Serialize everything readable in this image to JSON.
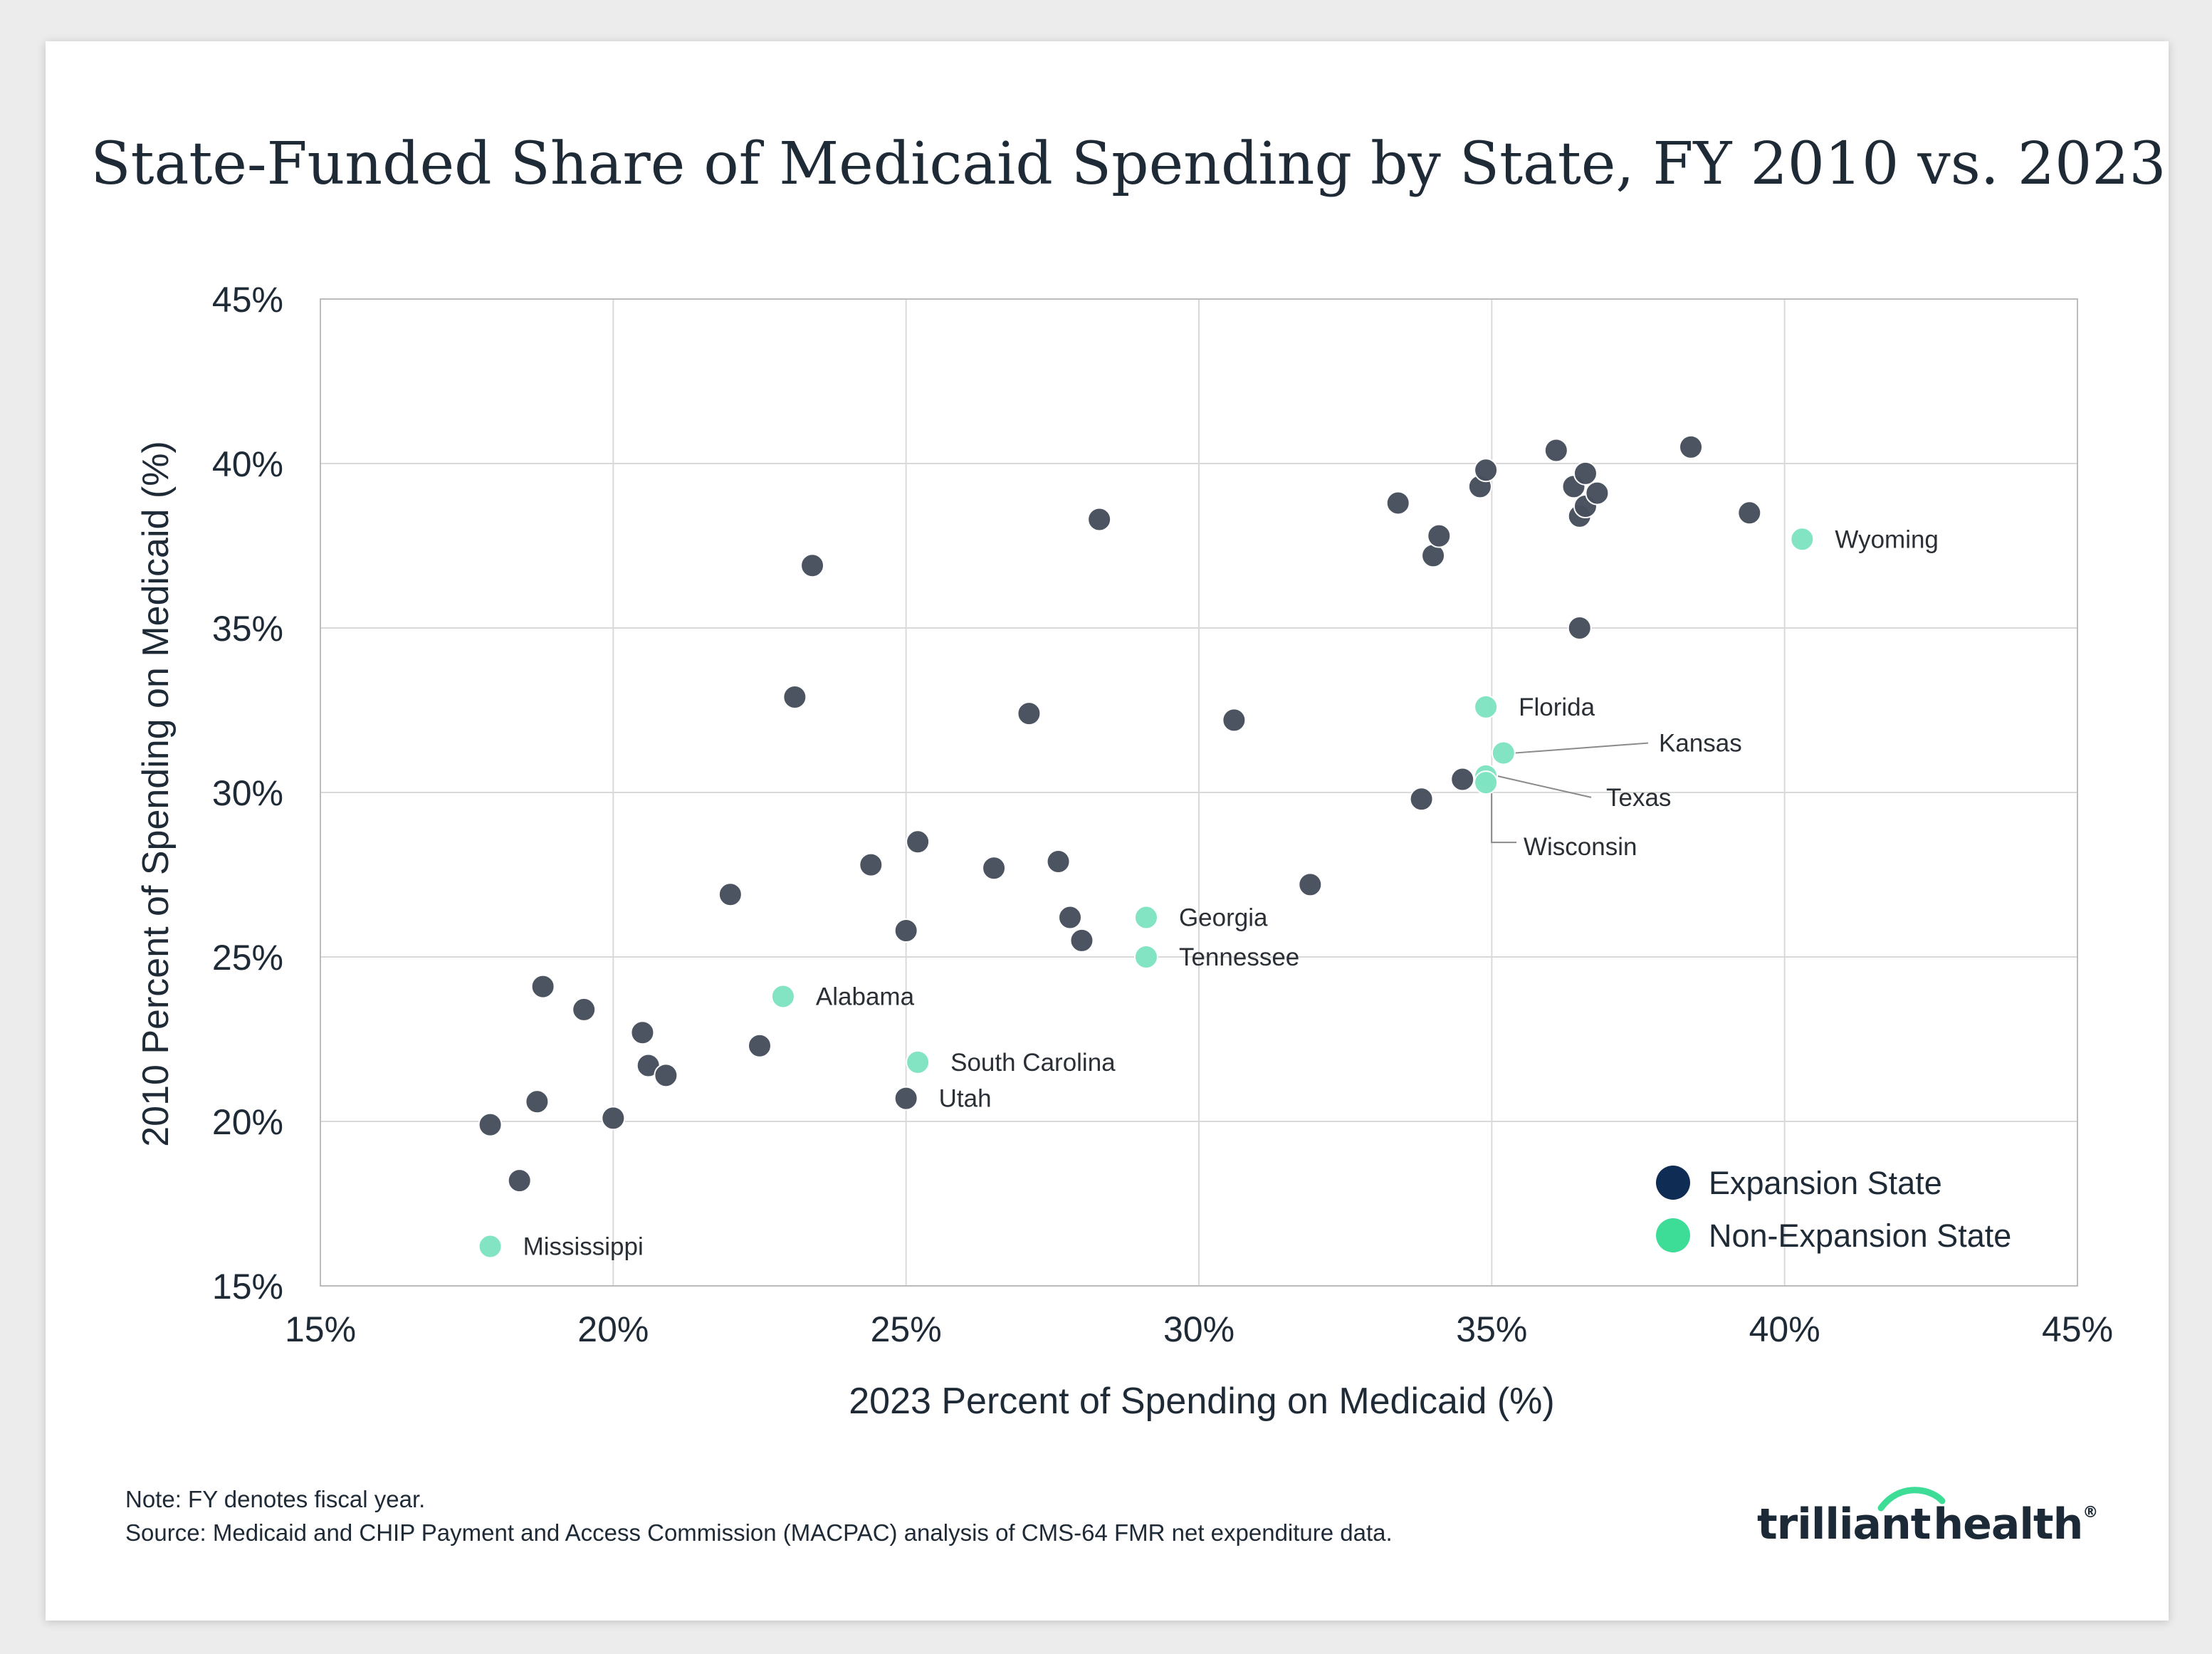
{
  "chart_data": {
    "type": "scatter",
    "title": "State-Funded Share of Medicaid Spending by State, FY 2010 vs. 2023",
    "xlabel": "2023 Percent of Spending on Medicaid (%)",
    "ylabel": "2010 Percent of Spending on Medicaid (%)",
    "xlim": [
      15,
      45
    ],
    "ylim": [
      15,
      45
    ],
    "x_ticks": [
      15,
      20,
      25,
      30,
      35,
      40,
      45
    ],
    "y_ticks": [
      15,
      20,
      25,
      30,
      35,
      40,
      45
    ],
    "x_tick_labels": [
      "15%",
      "20%",
      "25%",
      "30%",
      "35%",
      "40%",
      "45%"
    ],
    "y_tick_labels": [
      "15%",
      "20%",
      "25%",
      "30%",
      "35%",
      "40%",
      "45%"
    ],
    "grid": true,
    "legend_position": "bottom-right",
    "series": [
      {
        "name": "Expansion State",
        "color": "#0f2c55",
        "display_color": "#474f5c",
        "points": [
          {
            "x": 17.9,
            "y": 19.9
          },
          {
            "x": 18.4,
            "y": 18.2
          },
          {
            "x": 18.7,
            "y": 20.6
          },
          {
            "x": 18.8,
            "y": 24.1
          },
          {
            "x": 19.5,
            "y": 23.4
          },
          {
            "x": 20.0,
            "y": 20.1
          },
          {
            "x": 20.5,
            "y": 22.7
          },
          {
            "x": 20.6,
            "y": 21.7
          },
          {
            "x": 20.9,
            "y": 21.4
          },
          {
            "x": 22.0,
            "y": 26.9
          },
          {
            "x": 22.5,
            "y": 22.3
          },
          {
            "x": 23.1,
            "y": 32.9
          },
          {
            "x": 23.4,
            "y": 36.9
          },
          {
            "x": 24.4,
            "y": 27.8
          },
          {
            "x": 25.0,
            "y": 20.7,
            "label": "Utah"
          },
          {
            "x": 25.0,
            "y": 25.8
          },
          {
            "x": 25.2,
            "y": 28.5
          },
          {
            "x": 26.5,
            "y": 27.7
          },
          {
            "x": 27.1,
            "y": 32.4
          },
          {
            "x": 27.6,
            "y": 27.9
          },
          {
            "x": 27.8,
            "y": 26.2
          },
          {
            "x": 28.0,
            "y": 25.5
          },
          {
            "x": 28.3,
            "y": 38.3
          },
          {
            "x": 30.6,
            "y": 32.2
          },
          {
            "x": 31.9,
            "y": 27.2
          },
          {
            "x": 33.4,
            "y": 38.8
          },
          {
            "x": 33.8,
            "y": 29.8
          },
          {
            "x": 34.0,
            "y": 37.2
          },
          {
            "x": 34.1,
            "y": 37.8
          },
          {
            "x": 34.5,
            "y": 30.4
          },
          {
            "x": 34.8,
            "y": 39.3
          },
          {
            "x": 34.9,
            "y": 39.8
          },
          {
            "x": 36.1,
            "y": 40.4
          },
          {
            "x": 36.4,
            "y": 39.3
          },
          {
            "x": 36.5,
            "y": 38.4
          },
          {
            "x": 36.5,
            "y": 35.0
          },
          {
            "x": 36.6,
            "y": 39.7
          },
          {
            "x": 36.6,
            "y": 38.7
          },
          {
            "x": 36.8,
            "y": 39.1
          },
          {
            "x": 38.4,
            "y": 40.5
          },
          {
            "x": 39.4,
            "y": 38.5
          }
        ]
      },
      {
        "name": "Non-Expansion State",
        "color": "#3ddc97",
        "display_color": "#7ee4c2",
        "points": [
          {
            "x": 17.9,
            "y": 16.2,
            "label": "Mississippi"
          },
          {
            "x": 22.9,
            "y": 23.8,
            "label": "Alabama"
          },
          {
            "x": 25.2,
            "y": 21.8,
            "label": "South Carolina"
          },
          {
            "x": 29.1,
            "y": 26.2,
            "label": "Georgia"
          },
          {
            "x": 29.1,
            "y": 25.0,
            "label": "Tennessee"
          },
          {
            "x": 34.9,
            "y": 32.6,
            "label": "Florida"
          },
          {
            "x": 35.2,
            "y": 31.2,
            "label": "Kansas"
          },
          {
            "x": 34.9,
            "y": 30.5,
            "label": "Texas"
          },
          {
            "x": 34.9,
            "y": 30.3,
            "label": "Wisconsin"
          },
          {
            "x": 40.3,
            "y": 37.7,
            "label": "Wyoming"
          }
        ]
      }
    ]
  },
  "note": "Note: FY denotes fiscal year.",
  "source": "Source: Medicaid and CHIP Payment and Access Commission (MACPAC) analysis of CMS-64 FMR net expenditure data.",
  "logo": {
    "part1": "trilliant",
    "part2": "health",
    "mark": "®"
  }
}
